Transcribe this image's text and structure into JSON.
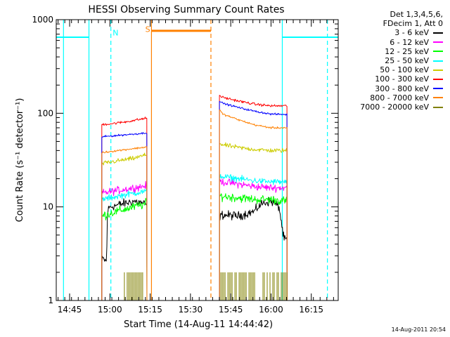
{
  "header": {
    "title": "HESSI Observing Summary Count Rates"
  },
  "legend": {
    "header_lines": [
      "Det 1,3,4,5,6,",
      "FDecim 1, Att 0"
    ],
    "entries": [
      {
        "label": "3 - 6 keV",
        "color": "#000000"
      },
      {
        "label": "6 - 12 keV",
        "color": "#ff00ff"
      },
      {
        "label": "12 - 25 keV",
        "color": "#00ff00"
      },
      {
        "label": "25 - 50 keV",
        "color": "#00ffff"
      },
      {
        "label": "50 - 100 keV",
        "color": "#cccc00"
      },
      {
        "label": "100 - 300 keV",
        "color": "#ff0000"
      },
      {
        "label": "300 - 800 keV",
        "color": "#0000ff"
      },
      {
        "label": "800 - 7000 keV",
        "color": "#ff8000"
      },
      {
        "label": "7000 - 20000 keV",
        "color": "#808000"
      }
    ]
  },
  "footer": {
    "timestamp": "14-Aug-2011 20:54"
  },
  "chart_data": {
    "type": "line",
    "title": "HESSI Observing Summary Count Rates",
    "xlabel": "Start Time (14-Aug-11 14:44:42)",
    "ylabel": "Count Rate (s⁻¹ detector⁻¹)",
    "yscale": "log",
    "xlim": [
      14.667,
      16.417
    ],
    "ylim": [
      1,
      1000
    ],
    "x_ticks": [
      {
        "value": 14.75,
        "label": "14:45"
      },
      {
        "value": 15.0,
        "label": "15:00"
      },
      {
        "value": 15.25,
        "label": "15:15"
      },
      {
        "value": 15.5,
        "label": "15:30"
      },
      {
        "value": 15.75,
        "label": "15:45"
      },
      {
        "value": 16.0,
        "label": "16:00"
      },
      {
        "value": 16.25,
        "label": "16:15"
      }
    ],
    "y_ticks": [
      {
        "value": 1,
        "label": "1"
      },
      {
        "value": 10,
        "label": "10"
      },
      {
        "value": 100,
        "label": "100"
      },
      {
        "value": 1000,
        "label": "1000"
      }
    ],
    "x_minor_step": 0.0417,
    "segments": [
      [
        14.95,
        15.23
      ],
      [
        15.68,
        16.1
      ]
    ],
    "series": [
      {
        "name": "3 - 6 keV",
        "color": "#000000",
        "noise": 0.07,
        "segments": [
          {
            "x": [
              14.95,
              14.955,
              14.98,
              14.985,
              15.0,
              15.05,
              15.1,
              15.15,
              15.2,
              15.23
            ],
            "y": [
              2.5,
              2.8,
              2.6,
              9.0,
              10.0,
              10.5,
              11.0,
              11.5,
              11.0,
              10.5
            ]
          },
          {
            "x": [
              15.68,
              15.7,
              15.8,
              15.9,
              15.92,
              15.95,
              16.0,
              16.05,
              16.08,
              16.1
            ],
            "y": [
              8.0,
              8.2,
              8.0,
              9.0,
              10.0,
              11.0,
              11.5,
              10.0,
              4.5,
              4.5
            ]
          }
        ]
      },
      {
        "name": "6 - 12 keV",
        "color": "#ff00ff",
        "noise": 0.06,
        "segments": [
          {
            "x": [
              14.95,
              15.0,
              15.05,
              15.1,
              15.15,
              15.2,
              15.23
            ],
            "y": [
              14.0,
              14.5,
              15.0,
              15.5,
              16.0,
              16.5,
              17.0
            ]
          },
          {
            "x": [
              15.68,
              15.7,
              15.8,
              15.9,
              16.0,
              16.1
            ],
            "y": [
              19.0,
              18.5,
              17.5,
              16.5,
              16.0,
              16.0
            ]
          }
        ]
      },
      {
        "name": "12 - 25 keV",
        "color": "#00ff00",
        "noise": 0.07,
        "segments": [
          {
            "x": [
              14.95,
              15.0,
              15.05,
              15.1,
              15.15,
              15.2,
              15.23
            ],
            "y": [
              8.0,
              8.5,
              9.0,
              9.5,
              10.0,
              10.5,
              11.0
            ]
          },
          {
            "x": [
              15.68,
              15.7,
              15.8,
              15.9,
              16.0,
              16.1
            ],
            "y": [
              13.0,
              13.0,
              12.5,
              12.0,
              12.0,
              11.5
            ]
          }
        ]
      },
      {
        "name": "25 - 50 keV",
        "color": "#00ffff",
        "noise": 0.05,
        "segments": [
          {
            "x": [
              14.95,
              15.0,
              15.05,
              15.1,
              15.15,
              15.2,
              15.23
            ],
            "y": [
              12.0,
              12.5,
              13.0,
              13.5,
              14.0,
              14.5,
              14.5
            ]
          },
          {
            "x": [
              15.68,
              15.7,
              15.8,
              15.9,
              16.0,
              16.1
            ],
            "y": [
              22.0,
              21.0,
              20.0,
              19.0,
              18.5,
              18.5
            ]
          }
        ]
      },
      {
        "name": "50 - 100 keV",
        "color": "#cccc00",
        "noise": 0.035,
        "segments": [
          {
            "x": [
              14.95,
              15.0,
              15.05,
              15.1,
              15.15,
              15.2,
              15.23
            ],
            "y": [
              29.0,
              30.0,
              31.0,
              32.0,
              33.0,
              35.0,
              36.0
            ]
          },
          {
            "x": [
              15.68,
              15.7,
              15.8,
              15.9,
              16.0,
              16.1
            ],
            "y": [
              48.0,
              46.0,
              43.0,
              41.0,
              40.0,
              40.0
            ]
          }
        ]
      },
      {
        "name": "100 - 300 keV",
        "color": "#ff0000",
        "noise": 0.02,
        "segments": [
          {
            "x": [
              14.95,
              15.0,
              15.05,
              15.1,
              15.15,
              15.2,
              15.23
            ],
            "y": [
              76.0,
              77.0,
              79.0,
              81.0,
              84.0,
              87.0,
              89.0
            ]
          },
          {
            "x": [
              15.68,
              15.7,
              15.8,
              15.9,
              16.0,
              16.1
            ],
            "y": [
              155.0,
              148.0,
              135.0,
              125.0,
              120.0,
              120.0
            ]
          }
        ]
      },
      {
        "name": "300 - 800 keV",
        "color": "#0000ff",
        "noise": 0.015,
        "segments": [
          {
            "x": [
              14.95,
              15.0,
              15.05,
              15.1,
              15.15,
              15.2,
              15.23
            ],
            "y": [
              56.0,
              57.0,
              58.0,
              59.0,
              60.0,
              61.0,
              62.0
            ]
          },
          {
            "x": [
              15.68,
              15.7,
              15.8,
              15.9,
              16.0,
              16.1
            ],
            "y": [
              135.0,
              128.0,
              115.0,
              105.0,
              98.0,
              97.0
            ]
          }
        ]
      },
      {
        "name": "800 - 7000 keV",
        "color": "#ff8000",
        "noise": 0.015,
        "segments": [
          {
            "x": [
              14.95,
              15.0,
              15.05,
              15.1,
              15.15,
              15.2,
              15.23
            ],
            "y": [
              38.0,
              39.0,
              40.0,
              41.0,
              42.0,
              43.0,
              44.0
            ]
          },
          {
            "x": [
              15.68,
              15.7,
              15.8,
              15.9,
              16.0,
              16.1
            ],
            "y": [
              110.0,
              98.0,
              85.0,
              75.0,
              70.0,
              70.0
            ]
          }
        ]
      },
      {
        "name": "7000 - 20000 keV",
        "color": "#808000",
        "type": "counts",
        "segments": [
          [
            15.09,
            15.21
          ],
          [
            15.68,
            15.92
          ],
          [
            15.95,
            16.1
          ]
        ],
        "levels": [
          1,
          2
        ]
      }
    ],
    "annotations": [
      {
        "type": "line",
        "x0": 14.667,
        "x1": 14.87,
        "y": 650,
        "color": "#00ffff",
        "dash": false
      },
      {
        "type": "line",
        "x0": 16.07,
        "x1": 16.417,
        "y": 650,
        "color": "#00ffff",
        "dash": false
      },
      {
        "type": "vline",
        "x": 14.87,
        "color": "#00ffff",
        "dash": false
      },
      {
        "type": "vline",
        "x": 15.006,
        "color": "#00ffff",
        "dash": true
      },
      {
        "type": "vline",
        "x": 16.07,
        "color": "#00ffff",
        "dash": false
      },
      {
        "type": "vline",
        "x": 16.35,
        "color": "#00ffff",
        "dash": true
      },
      {
        "type": "vline",
        "x": 14.712,
        "color": "#00ffff",
        "dash": false
      },
      {
        "type": "line",
        "x0": 15.258,
        "x1": 15.627,
        "y": 760,
        "color": "#ff8000",
        "dash": false,
        "thick": true
      },
      {
        "type": "vline",
        "x": 15.258,
        "color": "#ff8000",
        "dash": false
      },
      {
        "type": "vline",
        "x": 15.627,
        "color": "#ff8000",
        "dash": true
      },
      {
        "type": "text",
        "x": 15.035,
        "y": 680,
        "text": "N",
        "color": "#00ffff"
      },
      {
        "type": "text",
        "x": 15.235,
        "y": 740,
        "text": "S",
        "color": "#ff8000"
      }
    ]
  }
}
